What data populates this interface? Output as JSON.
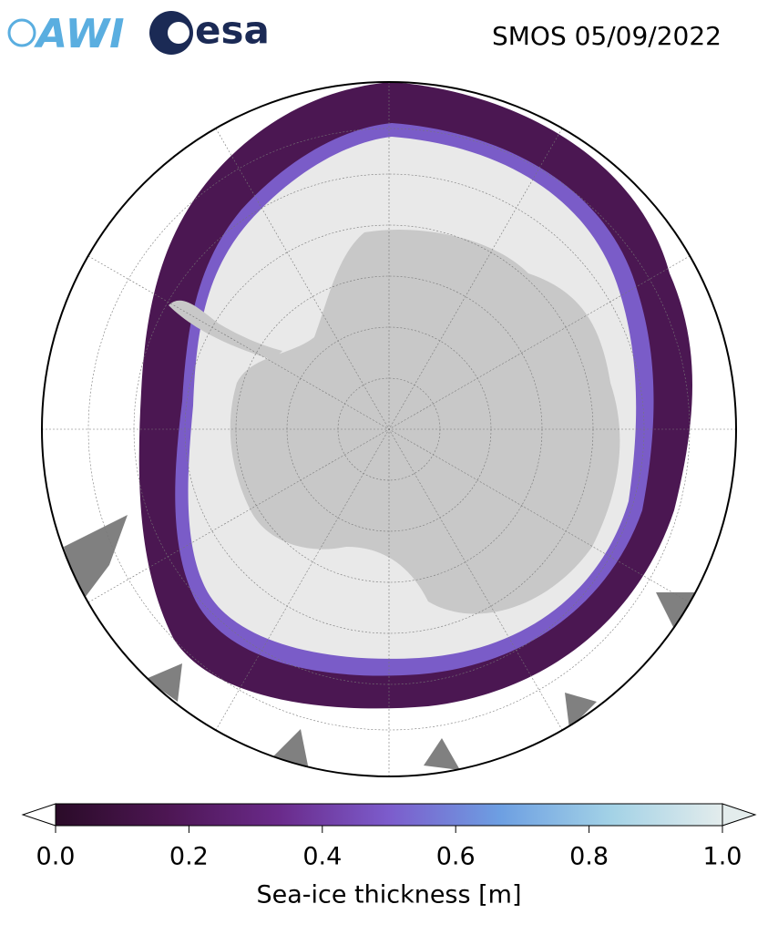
{
  "title": "SMOS 05/09/2022",
  "logos": {
    "awi": "AWI",
    "esa": "esa"
  },
  "colorbar": {
    "label": "Sea-ice thickness [m]",
    "lim": [
      0,
      1
    ],
    "colors": [
      "#2a0b28",
      "#4d1653",
      "#6a2a8a",
      "#7c5ccc",
      "#6d9fe2",
      "#a3d2e6",
      "#e3ecec"
    ],
    "ticks": [
      {
        "value": 0,
        "label": "0.0"
      },
      {
        "value": 0.2,
        "label": "0.2"
      },
      {
        "value": 0.4,
        "label": "0.4"
      },
      {
        "value": 0.6,
        "label": "0.6"
      },
      {
        "value": 0.8,
        "label": "0.8"
      },
      {
        "value": 1,
        "label": "1.0"
      }
    ]
  }
}
